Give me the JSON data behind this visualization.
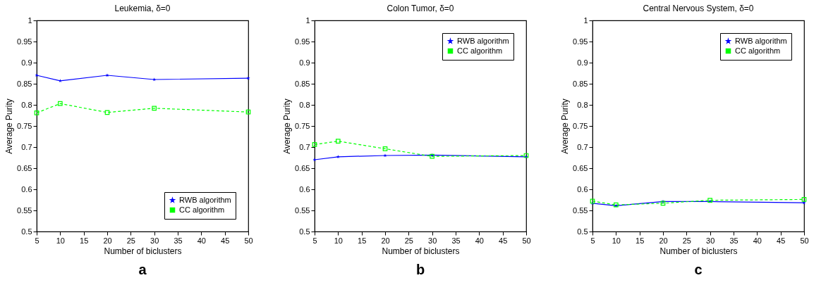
{
  "chart_data": [
    {
      "type": "line",
      "title": "Leukemia,  δ=0",
      "xlabel": "Number of biclusters",
      "ylabel": "Average Purity",
      "x": [
        5,
        10,
        20,
        30,
        50
      ],
      "series": [
        {
          "name": "RWB algorithm",
          "color": "#0000ff",
          "marker": "star",
          "line_style": "solid",
          "values": [
            0.87,
            0.857,
            0.87,
            0.86,
            0.863
          ]
        },
        {
          "name": "CC algorithm",
          "color": "#00ff00",
          "marker": "square",
          "line_style": "dashed",
          "values": [
            0.781,
            0.803,
            0.782,
            0.792,
            0.783
          ]
        }
      ],
      "xlim": [
        5,
        50
      ],
      "xticks": [
        5,
        10,
        15,
        20,
        25,
        30,
        35,
        40,
        45,
        50
      ],
      "ylim": [
        0.5,
        1
      ],
      "yticks": [
        0.5,
        0.55,
        0.6,
        0.65,
        0.7,
        0.75,
        0.8,
        0.85,
        0.9,
        0.95,
        1
      ],
      "grid": false,
      "legend": "bottom right",
      "annotations": [
        "a"
      ]
    },
    {
      "type": "line",
      "title": "Colon Tumor, δ=0",
      "xlabel": "Number of biclusters",
      "ylabel": "Average Purity",
      "x": [
        5,
        10,
        20,
        30,
        50
      ],
      "series": [
        {
          "name": "RWB algorithm",
          "color": "#0000ff",
          "marker": "star",
          "line_style": "solid",
          "values": [
            0.67,
            0.677,
            0.68,
            0.681,
            0.677
          ]
        },
        {
          "name": "CC algorithm",
          "color": "#00ff00",
          "marker": "square",
          "line_style": "dashed",
          "values": [
            0.706,
            0.714,
            0.696,
            0.678,
            0.68
          ]
        }
      ],
      "xlim": [
        5,
        50
      ],
      "xticks": [
        5,
        10,
        15,
        20,
        25,
        30,
        35,
        40,
        45,
        50
      ],
      "ylim": [
        0.5,
        1
      ],
      "yticks": [
        0.5,
        0.55,
        0.6,
        0.65,
        0.7,
        0.75,
        0.8,
        0.85,
        0.9,
        0.95,
        1
      ],
      "grid": false,
      "legend": "top right",
      "annotations": [
        "b"
      ]
    },
    {
      "type": "line",
      "title": "Central Nervous System,  δ=0",
      "xlabel": "Number of biclusters",
      "ylabel": "Average Purity",
      "x": [
        5,
        10,
        20,
        30,
        50
      ],
      "series": [
        {
          "name": "RWB algorithm",
          "color": "#0000ff",
          "marker": "star",
          "line_style": "solid",
          "values": [
            0.567,
            0.561,
            0.571,
            0.571,
            0.568
          ]
        },
        {
          "name": "CC algorithm",
          "color": "#00ff00",
          "marker": "square",
          "line_style": "dashed",
          "values": [
            0.572,
            0.563,
            0.567,
            0.574,
            0.576
          ]
        }
      ],
      "xlim": [
        5,
        50
      ],
      "xticks": [
        5,
        10,
        15,
        20,
        25,
        30,
        35,
        40,
        45,
        50
      ],
      "ylim": [
        0.5,
        1
      ],
      "yticks": [
        0.5,
        0.55,
        0.6,
        0.65,
        0.7,
        0.75,
        0.8,
        0.85,
        0.9,
        0.95,
        1
      ],
      "grid": false,
      "legend": "top right",
      "annotations": [
        "c"
      ]
    }
  ]
}
